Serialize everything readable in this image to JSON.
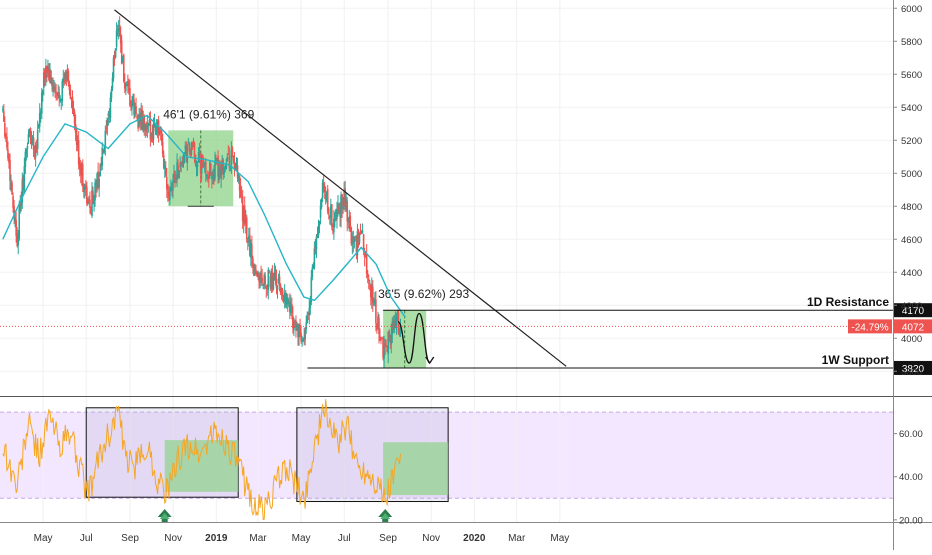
{
  "chart_data": [
    {
      "type": "candlestick",
      "panel": "price",
      "ylim": [
        3650,
        6050
      ],
      "y_ticks": [
        3800,
        4000,
        4200,
        4400,
        4600,
        4800,
        5000,
        5200,
        5400,
        5600,
        5800,
        6000
      ],
      "y_tick_labels": [
        "3800",
        "4000",
        "4200",
        "4400",
        "4600",
        "4800",
        "5000",
        "5200",
        "5400",
        "5600",
        "5800",
        "6000"
      ],
      "x_ticks": [
        {
          "label": "May",
          "date": "2018-05-01"
        },
        {
          "label": "Jul",
          "date": "2018-07-01"
        },
        {
          "label": "Sep",
          "date": "2018-09-01"
        },
        {
          "label": "Nov",
          "date": "2018-11-01"
        },
        {
          "label": "2019",
          "date": "2019-01-01"
        },
        {
          "label": "Mar",
          "date": "2019-03-01"
        },
        {
          "label": "May",
          "date": "2019-05-01"
        },
        {
          "label": "Jul",
          "date": "2019-07-01"
        },
        {
          "label": "Sep",
          "date": "2019-09-01"
        },
        {
          "label": "Nov",
          "date": "2019-11-01"
        },
        {
          "label": "2020",
          "date": "2020-01-01"
        },
        {
          "label": "Mar",
          "date": "2020-03-01"
        },
        {
          "label": "May",
          "date": "2020-05-01"
        }
      ],
      "colors": {
        "up": "#26a69a",
        "down": "#ef5350",
        "moving_average": "#26b5c6",
        "trendline": "#222222",
        "box": "#8fd18a"
      },
      "price_path": [
        [
          "2018-03-05",
          5400
        ],
        [
          "2018-03-25",
          4600
        ],
        [
          "2018-04-10",
          5250
        ],
        [
          "2018-04-20",
          5150
        ],
        [
          "2018-05-05",
          5650
        ],
        [
          "2018-05-20",
          5450
        ],
        [
          "2018-06-05",
          5600
        ],
        [
          "2018-06-20",
          5100
        ],
        [
          "2018-07-05",
          4780
        ],
        [
          "2018-07-20",
          5000
        ],
        [
          "2018-08-01",
          5300
        ],
        [
          "2018-08-15",
          5950
        ],
        [
          "2018-08-25",
          5500
        ],
        [
          "2018-09-10",
          5350
        ],
        [
          "2018-09-25",
          5250
        ],
        [
          "2018-10-10",
          5300
        ],
        [
          "2018-10-25",
          4900
        ],
        [
          "2018-11-10",
          5050
        ],
        [
          "2018-11-25",
          5150
        ],
        [
          "2018-12-10",
          5050
        ],
        [
          "2018-12-25",
          5000
        ],
        [
          "2019-01-10",
          5050
        ],
        [
          "2019-01-25",
          5100
        ],
        [
          "2019-02-10",
          4700
        ],
        [
          "2019-02-25",
          4400
        ],
        [
          "2019-03-10",
          4350
        ],
        [
          "2019-03-25",
          4350
        ],
        [
          "2019-04-10",
          4250
        ],
        [
          "2019-04-25",
          4050
        ],
        [
          "2019-05-05",
          3950
        ],
        [
          "2019-05-20",
          4500
        ],
        [
          "2019-06-01",
          4900
        ],
        [
          "2019-06-15",
          4700
        ],
        [
          "2019-07-01",
          4850
        ],
        [
          "2019-07-15",
          4550
        ],
        [
          "2019-07-25",
          4650
        ],
        [
          "2019-08-05",
          4350
        ],
        [
          "2019-08-15",
          4150
        ],
        [
          "2019-08-25",
          3900
        ],
        [
          "2019-09-05",
          4050
        ],
        [
          "2019-09-20",
          4110
        ]
      ],
      "moving_average": [
        [
          "2018-03-05",
          4600
        ],
        [
          "2018-04-01",
          4850
        ],
        [
          "2018-05-01",
          5100
        ],
        [
          "2018-06-01",
          5300
        ],
        [
          "2018-07-01",
          5250
        ],
        [
          "2018-08-01",
          5150
        ],
        [
          "2018-09-01",
          5300
        ],
        [
          "2018-09-25",
          5350
        ],
        [
          "2018-10-20",
          5250
        ],
        [
          "2018-11-20",
          5100
        ],
        [
          "2018-12-20",
          5080
        ],
        [
          "2019-01-20",
          5050
        ],
        [
          "2019-02-15",
          4950
        ],
        [
          "2019-03-10",
          4750
        ],
        [
          "2019-04-10",
          4450
        ],
        [
          "2019-05-05",
          4250
        ],
        [
          "2019-05-20",
          4230
        ],
        [
          "2019-06-15",
          4350
        ],
        [
          "2019-07-05",
          4450
        ],
        [
          "2019-07-25",
          4550
        ],
        [
          "2019-08-15",
          4450
        ],
        [
          "2019-09-05",
          4250
        ],
        [
          "2019-09-25",
          4130
        ]
      ],
      "trendline": {
        "start": [
          "2018-08-10",
          5990
        ],
        "end": [
          "2020-05-10",
          3830
        ]
      },
      "annotations": [
        {
          "label": "46'1 (9.61%) 369",
          "box": {
            "x": [
              "2018-10-25",
              "2019-01-25"
            ],
            "y": [
              4800,
              5260
            ]
          }
        },
        {
          "label": "36'5 (9.62%) 293",
          "box": {
            "x": [
              "2019-08-25",
              "2019-10-25"
            ],
            "y": [
              3820,
              4170
            ]
          }
        }
      ],
      "levels": [
        {
          "label": "1D Resistance",
          "value": 4170,
          "value_label": "4170"
        },
        {
          "label": "1W Support",
          "value": 3820,
          "value_label": "3820"
        }
      ],
      "last_price": {
        "value": 4072,
        "value_label": "4072",
        "change_label": "-24.79%"
      },
      "projection": [
        [
          "2019-09-15",
          4100
        ],
        [
          "2019-10-01",
          3850
        ],
        [
          "2019-10-15",
          4150
        ],
        [
          "2019-10-30",
          3850
        ]
      ]
    },
    {
      "type": "line",
      "panel": "oscillator",
      "ylim": [
        19,
        77
      ],
      "y_ticks": [
        20,
        40,
        60
      ],
      "y_tick_labels": [
        "20.00",
        "40.00",
        "60.00"
      ],
      "band": [
        30,
        70
      ],
      "colors": {
        "line": "#f5a623",
        "band": "#f3e6ff",
        "box": "#8fd18a"
      },
      "path": [
        [
          "2018-03-05",
          55
        ],
        [
          "2018-03-25",
          35
        ],
        [
          "2018-04-10",
          65
        ],
        [
          "2018-04-25",
          50
        ],
        [
          "2018-05-10",
          68
        ],
        [
          "2018-05-25",
          55
        ],
        [
          "2018-06-10",
          60
        ],
        [
          "2018-06-25",
          40
        ],
        [
          "2018-07-05",
          32
        ],
        [
          "2018-07-20",
          50
        ],
        [
          "2018-08-05",
          62
        ],
        [
          "2018-08-15",
          72
        ],
        [
          "2018-08-25",
          48
        ],
        [
          "2018-09-10",
          45
        ],
        [
          "2018-09-25",
          55
        ],
        [
          "2018-10-10",
          38
        ],
        [
          "2018-10-25",
          33
        ],
        [
          "2018-11-10",
          50
        ],
        [
          "2018-11-25",
          55
        ],
        [
          "2018-12-10",
          50
        ],
        [
          "2018-12-25",
          60
        ],
        [
          "2019-01-10",
          58
        ],
        [
          "2019-01-25",
          50
        ],
        [
          "2019-02-10",
          38
        ],
        [
          "2019-02-25",
          26
        ],
        [
          "2019-03-10",
          25
        ],
        [
          "2019-03-25",
          35
        ],
        [
          "2019-04-10",
          45
        ],
        [
          "2019-04-25",
          35
        ],
        [
          "2019-05-05",
          28
        ],
        [
          "2019-05-20",
          55
        ],
        [
          "2019-06-05",
          72
        ],
        [
          "2019-06-20",
          55
        ],
        [
          "2019-07-05",
          63
        ],
        [
          "2019-07-20",
          45
        ],
        [
          "2019-08-05",
          42
        ],
        [
          "2019-08-20",
          36
        ],
        [
          "2019-08-28",
          28
        ],
        [
          "2019-09-05",
          38
        ],
        [
          "2019-09-20",
          50
        ]
      ],
      "rectangles": [
        {
          "x": [
            "2018-07-01",
            "2019-02-01"
          ],
          "y": [
            30.5,
            72
          ],
          "style": "outlined"
        },
        {
          "x": [
            "2019-04-25",
            "2019-11-25"
          ],
          "y": [
            28.5,
            72
          ],
          "style": "outlined"
        },
        {
          "x": [
            "2018-10-20",
            "2019-02-01"
          ],
          "y": [
            33,
            57
          ],
          "style": "filled"
        },
        {
          "x": [
            "2019-08-25",
            "2019-11-25"
          ],
          "y": [
            31.5,
            56
          ],
          "style": "filled"
        }
      ],
      "arrows": [
        {
          "date": "2018-10-20"
        },
        {
          "date": "2019-08-28"
        }
      ]
    }
  ]
}
